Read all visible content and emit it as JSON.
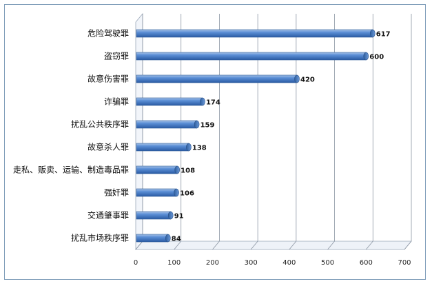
{
  "chart_data": {
    "type": "bar",
    "orientation": "horizontal",
    "categories": [
      "危险驾驶罪",
      "盗窃罪",
      "故意伤害罪",
      "诈骗罪",
      "扰乱公共秩序罪",
      "故意杀人罪",
      "走私、贩卖、运输、制造毒品罪",
      "强奸罪",
      "交通肇事罪",
      "扰乱市场秩序罪"
    ],
    "values": [
      617,
      600,
      420,
      174,
      159,
      138,
      108,
      106,
      91,
      84
    ],
    "title": "",
    "xlabel": "",
    "ylabel": "",
    "xlim": [
      0,
      700
    ],
    "x_ticks": [
      0,
      100,
      200,
      300,
      400,
      500,
      600,
      700
    ],
    "grid": "vertical",
    "legend": "none",
    "bar_color": "#4f81bd",
    "data_labels": true
  }
}
